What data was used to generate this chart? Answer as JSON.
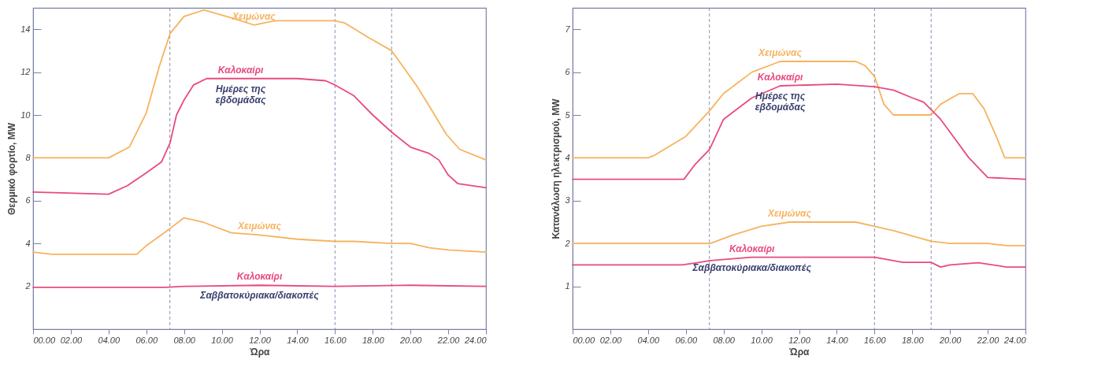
{
  "chart_data": [
    {
      "type": "line",
      "xlabel": "Ώρα",
      "ylabel": "Θερμικό φορτίο, MW",
      "xlim": [
        0,
        24
      ],
      "ylim": [
        0,
        15
      ],
      "xticks": [
        {
          "value": 0,
          "label": "00.00"
        },
        {
          "value": 2,
          "label": "02.00"
        },
        {
          "value": 4,
          "label": "04.00"
        },
        {
          "value": 6,
          "label": "06.00"
        },
        {
          "value": 8,
          "label": "08.00"
        },
        {
          "value": 10,
          "label": "10.00"
        },
        {
          "value": 12,
          "label": "12.00"
        },
        {
          "value": 14,
          "label": "14.00"
        },
        {
          "value": 16,
          "label": "16.00"
        },
        {
          "value": 18,
          "label": "18.00"
        },
        {
          "value": 20,
          "label": "20.00"
        },
        {
          "value": 22,
          "label": "22.00"
        },
        {
          "value": 24,
          "label": "24.00"
        }
      ],
      "yticks": [
        2,
        4,
        6,
        8,
        10,
        12,
        14
      ],
      "grid": false,
      "line_style": "solid",
      "series": [
        {
          "name": "Χειμώνας",
          "color": "#f6b35e",
          "x": [
            0,
            4,
            5.1,
            6,
            6.7,
            7.26,
            8,
            9.05,
            10.65,
            11.7,
            12.8,
            15.5,
            16,
            16.5,
            17.8,
            19,
            20.3,
            20.8,
            21.9,
            22.6,
            24
          ],
          "values": [
            8,
            8,
            8.5,
            10.1,
            12.3,
            13.8,
            14.6,
            14.9,
            14.5,
            14.2,
            14.4,
            14.4,
            14.4,
            14.3,
            13.6,
            13,
            11.4,
            10.7,
            9.1,
            8.4,
            7.9
          ]
        },
        {
          "name": "Καλοκαίρι",
          "color": "#e84a7f",
          "x": [
            0,
            4,
            5,
            6,
            6.8,
            7.26,
            7.6,
            8,
            8.5,
            9.2,
            11,
            14,
            15.5,
            16,
            17,
            18,
            19,
            20,
            21,
            21.5,
            22,
            22.5,
            24
          ],
          "values": [
            6.4,
            6.3,
            6.7,
            7.3,
            7.8,
            8.7,
            10,
            10.7,
            11.4,
            11.7,
            11.7,
            11.7,
            11.6,
            11.4,
            10.9,
            10,
            9.2,
            8.5,
            8.2,
            7.9,
            7.2,
            6.8,
            6.6
          ]
        },
        {
          "name": "Χειμώνας",
          "color": "#f6b35e",
          "x": [
            0,
            1,
            5.5,
            6,
            7.26,
            8,
            9,
            10.5,
            12,
            14,
            16,
            17,
            19,
            20,
            21,
            22,
            24
          ],
          "values": [
            3.6,
            3.5,
            3.5,
            3.9,
            4.7,
            5.2,
            5,
            4.5,
            4.4,
            4.2,
            4.1,
            4.1,
            4,
            4,
            3.8,
            3.7,
            3.6
          ]
        },
        {
          "name": "Καλοκαίρι",
          "color": "#e84a7f",
          "x": [
            0,
            7,
            8,
            12,
            16,
            20,
            24
          ],
          "values": [
            1.95,
            1.95,
            2,
            2.05,
            2,
            2.05,
            2
          ]
        }
      ],
      "ref_lines": [
        {
          "axis": "x",
          "value": 7.25,
          "color": "#8890b0",
          "line_style": "dashed"
        },
        {
          "axis": "x",
          "value": 16,
          "color": "#8890b0",
          "line_style": "dashed"
        },
        {
          "axis": "x",
          "value": 19,
          "color": "#8890b0",
          "line_style": "dashed"
        }
      ],
      "annotations": [
        "Ημέρες της\nεβδομάδας",
        "Σαββατοκύριακα/διακοπές"
      ]
    },
    {
      "type": "line",
      "xlabel": "Ώρα",
      "ylabel": "Κατανάλωση ηλεκτρισμού, MW",
      "xlim": [
        0,
        24
      ],
      "ylim": [
        0,
        7.5
      ],
      "xticks": [
        {
          "value": 0,
          "label": "00.00"
        },
        {
          "value": 2,
          "label": "02.00"
        },
        {
          "value": 4,
          "label": "04.00"
        },
        {
          "value": 6,
          "label": "06.00"
        },
        {
          "value": 8,
          "label": "08.00"
        },
        {
          "value": 10,
          "label": "10.00"
        },
        {
          "value": 12,
          "label": "12.00"
        },
        {
          "value": 14,
          "label": "14.00"
        },
        {
          "value": 16,
          "label": "16.00"
        },
        {
          "value": 18,
          "label": "18.00"
        },
        {
          "value": 20,
          "label": "20.00"
        },
        {
          "value": 22,
          "label": "22.00"
        },
        {
          "value": 24,
          "label": "24.00"
        }
      ],
      "yticks": [
        1,
        2,
        3,
        4,
        5,
        6,
        7
      ],
      "grid": false,
      "line_style": "solid",
      "series": [
        {
          "name": "Χειμώνας",
          "color": "#f6b35e",
          "x": [
            0,
            4,
            4.3,
            6,
            7.26,
            8,
            9.5,
            11,
            15,
            15.5,
            16,
            16.5,
            17,
            19,
            19.5,
            20.5,
            21.2,
            21.8,
            22.5,
            22.9,
            24
          ],
          "values": [
            4,
            4,
            4.05,
            4.5,
            5.1,
            5.5,
            6,
            6.25,
            6.25,
            6.15,
            5.9,
            5.25,
            5,
            5,
            5.25,
            5.5,
            5.5,
            5.15,
            4.45,
            4,
            4
          ]
        },
        {
          "name": "Καλοκαίρι",
          "color": "#e84a7f",
          "x": [
            0,
            5.9,
            6.5,
            7.26,
            8,
            9.5,
            11,
            14,
            16,
            17,
            18,
            18.6,
            19.5,
            20,
            21,
            22,
            24
          ],
          "values": [
            3.5,
            3.5,
            3.85,
            4.2,
            4.9,
            5.4,
            5.68,
            5.72,
            5.66,
            5.58,
            5.4,
            5.3,
            4.9,
            4.6,
            4,
            3.54,
            3.5
          ]
        },
        {
          "name": "Χειμώνας",
          "color": "#f6b35e",
          "x": [
            0,
            7.3,
            8.5,
            10,
            11.5,
            15,
            16,
            17,
            19,
            20,
            21.5,
            22,
            23,
            24
          ],
          "values": [
            2,
            2,
            2.2,
            2.4,
            2.5,
            2.5,
            2.4,
            2.3,
            2.05,
            2,
            2,
            2,
            1.95,
            1.95
          ]
        },
        {
          "name": "Καλοκαίρι",
          "color": "#e84a7f",
          "x": [
            0,
            5.8,
            6.6,
            7.3,
            9.5,
            16,
            17.5,
            19,
            19.5,
            20,
            21.5,
            23,
            24
          ],
          "values": [
            1.5,
            1.5,
            1.55,
            1.6,
            1.68,
            1.68,
            1.56,
            1.56,
            1.45,
            1.5,
            1.55,
            1.45,
            1.45
          ]
        }
      ],
      "ref_lines": [
        {
          "axis": "x",
          "value": 7.25,
          "color": "#8890b0",
          "line_style": "dashed"
        },
        {
          "axis": "x",
          "value": 16,
          "color": "#8890b0",
          "line_style": "dashed"
        },
        {
          "axis": "x",
          "value": 19,
          "color": "#8890b0",
          "line_style": "dashed"
        }
      ],
      "annotations": [
        "Ημέρες της\nεβδομάδας",
        "Σαββατοκύριακα/διακοπές"
      ]
    }
  ]
}
